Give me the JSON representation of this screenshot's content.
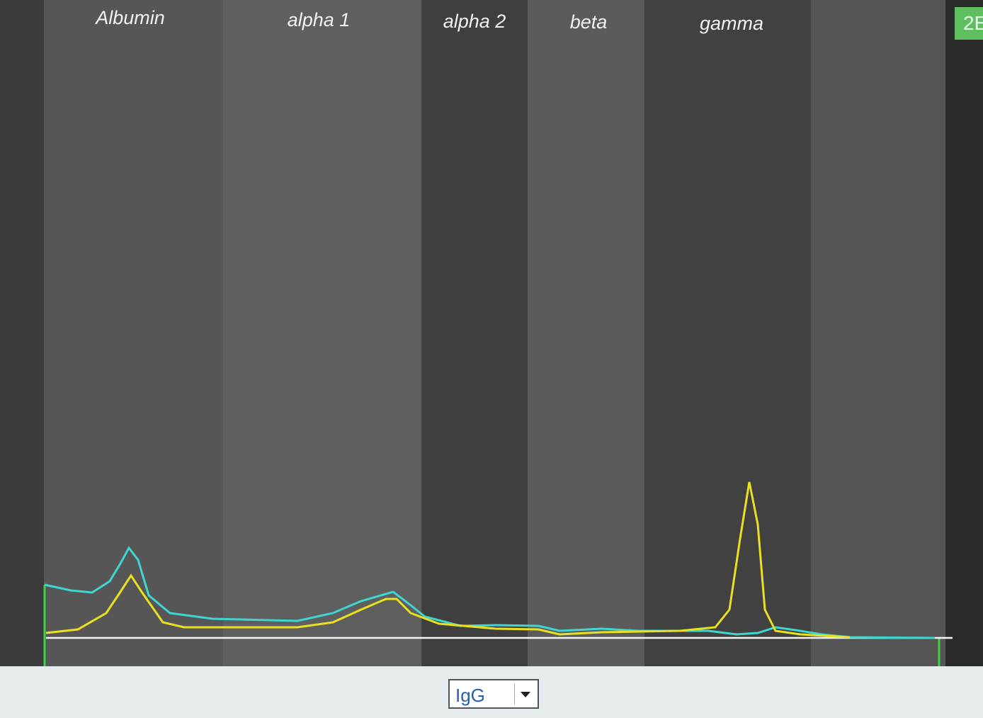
{
  "fractions": [
    "Albumin",
    "alpha 1",
    "alpha 2",
    "beta",
    "gamma"
  ],
  "corner_label": "2E",
  "dropdown": {
    "value": "IgG"
  }
}
